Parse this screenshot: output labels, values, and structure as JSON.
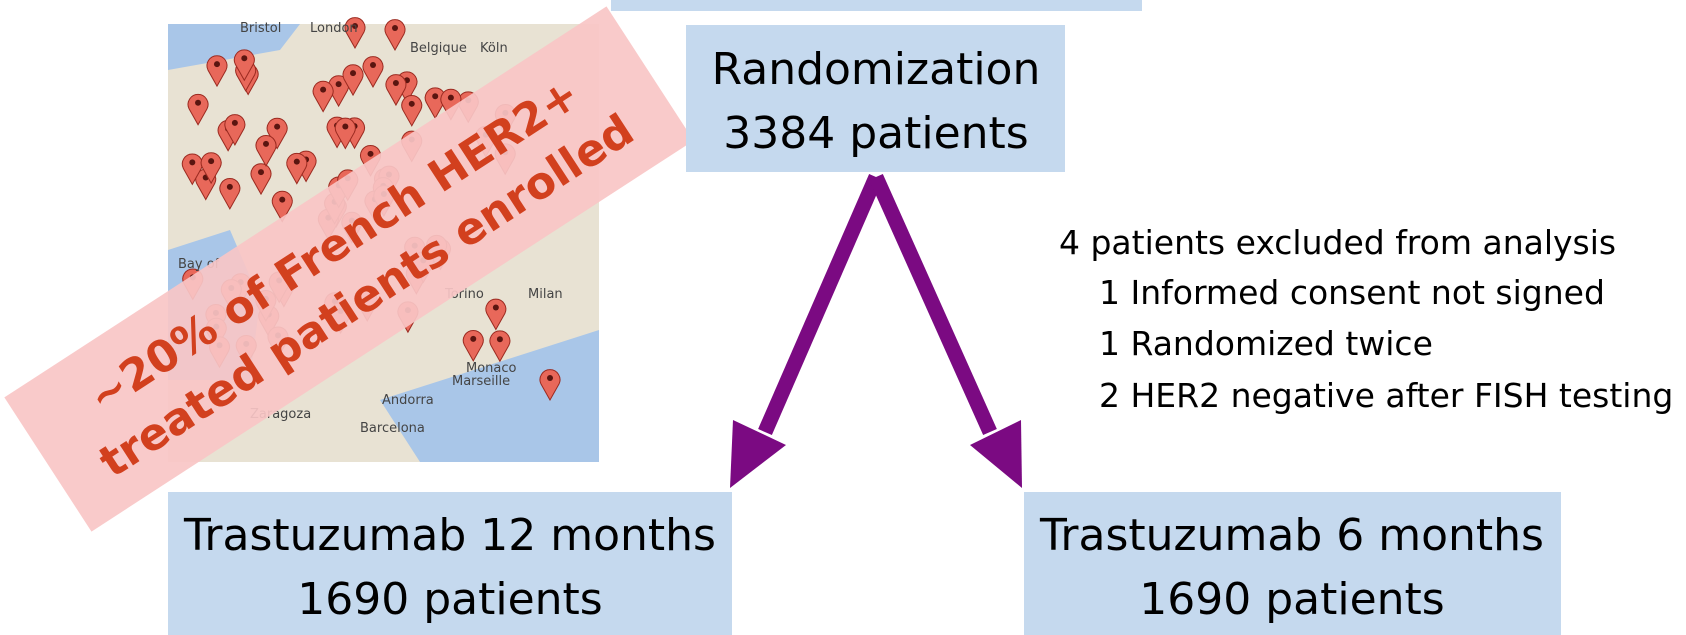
{
  "map": {
    "labels": [
      "Bristol",
      "London",
      "Belgique",
      "Köln",
      "Bay of",
      "Torino",
      "Milan",
      "Marseille",
      "Andorra",
      "Zaragoza",
      "Barcelona",
      "Monaco"
    ]
  },
  "banner": {
    "lines": [
      "~20% of French HER2+",
      "treated patients enrolled"
    ]
  },
  "randomization": {
    "lines": [
      "Randomization",
      "3384 patients"
    ]
  },
  "exclusions": {
    "title": "4 patients excluded from analysis",
    "items": [
      "1 Informed consent not signed",
      "1 Randomized twice",
      "2 HER2 negative after FISH testing"
    ]
  },
  "arms": [
    {
      "lines": [
        "Trastuzumab 12 months",
        "1690 patients"
      ]
    },
    {
      "lines": [
        "Trastuzumab 6 months",
        "1690 patients"
      ]
    }
  ]
}
